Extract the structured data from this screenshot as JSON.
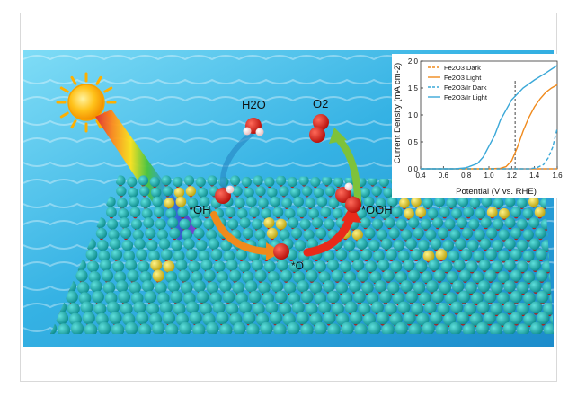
{
  "scene": {
    "labels": {
      "h2o": "H2O",
      "o2": "O2",
      "oh": "*OH",
      "ooh": "*OOH",
      "o": "*O"
    },
    "colors": {
      "water_light": "#5fd0f2",
      "water_dark": "#1a86c4",
      "fe_atom": "#12a5a5",
      "o_atom": "#c0160e",
      "ir_atom": "#e3cf22",
      "sun": "#ffb000",
      "arrow_orange": "#f08a1c",
      "arrow_red": "#e82a1a",
      "arrow_green": "#7ec23a",
      "arrow_blue": "#2a8cc8"
    },
    "icons": [
      "sun-icon",
      "rainbow-beam",
      "catalyst-lattice"
    ]
  },
  "chart_data": {
    "type": "line",
    "xlabel": "Potential (V vs. RHE)",
    "ylabel": "Current Density (mA cm-2)",
    "xlim": [
      0.4,
      1.6
    ],
    "ylim": [
      0.0,
      2.0
    ],
    "xticks": [
      "0.4",
      "0.6",
      "0.8",
      "1.0",
      "1.2",
      "1.4",
      "1.6"
    ],
    "yticks": [
      "0.0",
      "0.5",
      "1.0",
      "1.5",
      "2.0"
    ],
    "legend_position": "top-left",
    "vline_x": 1.23,
    "series": [
      {
        "name": "Fe2O3 Dark",
        "color": "#f08a1c",
        "dash": true,
        "x": [
          0.4,
          0.8,
          1.0,
          1.2,
          1.4,
          1.5,
          1.6
        ],
        "y": [
          0.0,
          0.0,
          0.0,
          0.0,
          0.0,
          0.0,
          0.0
        ]
      },
      {
        "name": "Fe2O3 Light",
        "color": "#f08a1c",
        "dash": false,
        "x": [
          0.4,
          1.0,
          1.1,
          1.15,
          1.2,
          1.25,
          1.3,
          1.35,
          1.4,
          1.45,
          1.5,
          1.55,
          1.6
        ],
        "y": [
          0.0,
          0.0,
          0.01,
          0.04,
          0.15,
          0.4,
          0.7,
          0.95,
          1.15,
          1.3,
          1.42,
          1.5,
          1.56
        ]
      },
      {
        "name": "Fe2O3/Ir Dark",
        "color": "#3aa8d8",
        "dash": true,
        "x": [
          0.4,
          1.35,
          1.42,
          1.48,
          1.52,
          1.56,
          1.6
        ],
        "y": [
          0.0,
          0.0,
          0.02,
          0.08,
          0.2,
          0.4,
          0.75
        ]
      },
      {
        "name": "Fe2O3/Ir Light",
        "color": "#3aa8d8",
        "dash": false,
        "x": [
          0.4,
          0.7,
          0.8,
          0.9,
          0.95,
          1.0,
          1.05,
          1.1,
          1.2,
          1.3,
          1.4,
          1.5,
          1.55,
          1.6
        ],
        "y": [
          0.0,
          0.0,
          0.02,
          0.1,
          0.22,
          0.42,
          0.62,
          0.9,
          1.28,
          1.5,
          1.65,
          1.78,
          1.85,
          1.92
        ]
      }
    ]
  }
}
